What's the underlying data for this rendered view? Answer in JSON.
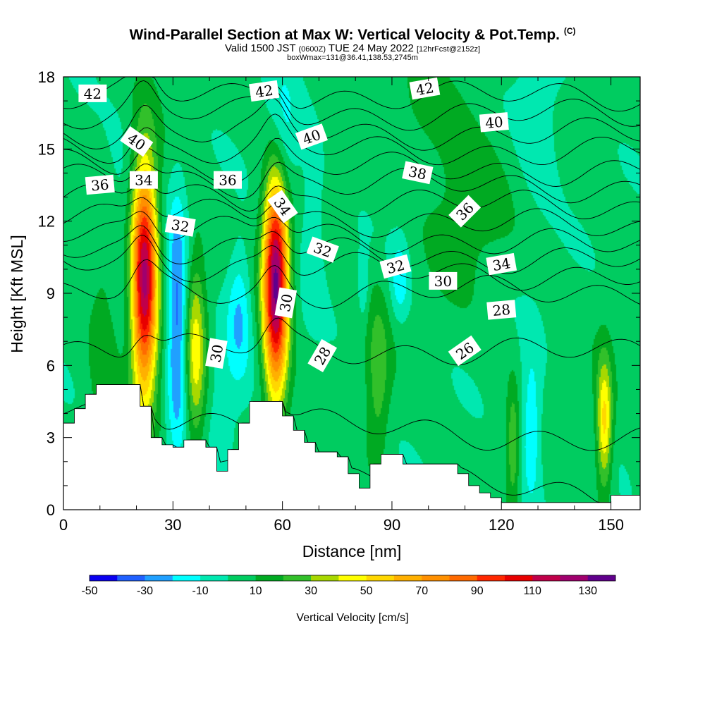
{
  "header": {
    "title": "Wind-Parallel Section at Max W: Vertical Velocity & Pot.Temp.",
    "title_tag": "(C)",
    "subtitle_a": "Valid 1500 JST",
    "subtitle_b": "(0600Z)",
    "subtitle_c": "TUE 24 May 2022",
    "subtitle_d": "[12hrFcst@2152z]",
    "boxline": "boxWmax=131@36.41,138.53,2745m"
  },
  "chart_data": {
    "type": "heatmap",
    "xlabel": "Distance [nm]",
    "ylabel": "Height [Kft MSL]",
    "xlim": [
      0,
      158
    ],
    "ylim": [
      0,
      18
    ],
    "x_ticks": [
      "0",
      "30",
      "60",
      "90",
      "120",
      "150"
    ],
    "y_ticks": [
      "0",
      "3",
      "6",
      "9",
      "12",
      "15",
      "18"
    ],
    "colorbar": {
      "label": "Vertical Velocity [cm/s]",
      "tick_labels": [
        "-50",
        "-30",
        "-10",
        "10",
        "30",
        "50",
        "70",
        "90",
        "110",
        "130"
      ],
      "levels": [
        -50,
        -40,
        -30,
        -20,
        -10,
        0,
        10,
        20,
        30,
        40,
        50,
        60,
        70,
        80,
        90,
        100,
        110,
        120,
        130,
        140
      ],
      "colors": [
        "#0a00f0",
        "#2060ff",
        "#20a0ff",
        "#00ffff",
        "#00e8b0",
        "#00cc60",
        "#00aa22",
        "#32c02a",
        "#a8d800",
        "#ffff00",
        "#ffd700",
        "#ffb000",
        "#ff9000",
        "#ff6a00",
        "#ff2800",
        "#e80000",
        "#c0004a",
        "#a0006e",
        "#60008c"
      ]
    },
    "terrain_top_kft": [
      [
        0,
        3.6
      ],
      [
        3,
        4.2
      ],
      [
        6,
        4.8
      ],
      [
        9,
        5.2
      ],
      [
        21,
        4.3
      ],
      [
        24,
        3
      ],
      [
        27,
        2.7
      ],
      [
        30,
        2.6
      ],
      [
        33,
        2.9
      ],
      [
        39,
        2.6
      ],
      [
        42,
        1.6
      ],
      [
        45,
        2.5
      ],
      [
        48,
        3.6
      ],
      [
        51,
        4.5
      ],
      [
        57,
        4.5
      ],
      [
        60,
        3.9
      ],
      [
        63,
        3.3
      ],
      [
        66,
        2.8
      ],
      [
        69,
        2.4
      ],
      [
        75,
        2.2
      ],
      [
        78,
        1.5
      ],
      [
        81,
        0.9
      ],
      [
        84,
        1.9
      ],
      [
        87,
        2.3
      ],
      [
        90,
        2.3
      ],
      [
        93,
        1.9
      ],
      [
        105,
        1.9
      ],
      [
        108,
        1.5
      ],
      [
        111,
        1
      ],
      [
        114,
        0.7
      ],
      [
        117,
        0.5
      ],
      [
        120,
        0.3
      ],
      [
        147,
        0.3
      ],
      [
        150,
        0.6
      ],
      [
        158,
        0.6
      ]
    ],
    "vertical_velocity_cells": [
      {
        "x": 22,
        "z": 9.6,
        "sx": 2.5,
        "sz": 3.4,
        "w": 120
      },
      {
        "x": 58,
        "z": 9.6,
        "sx": 2.4,
        "sz": 3.4,
        "w": 130
      },
      {
        "x": 36,
        "z": 6.6,
        "sx": 2.0,
        "sz": 2.8,
        "w": 40
      },
      {
        "x": 148,
        "z": 3.6,
        "sx": 1.5,
        "sz": 1.9,
        "w": 50
      },
      {
        "x": 123,
        "z": 2.6,
        "sx": 1.2,
        "sz": 1.8,
        "w": 25
      },
      {
        "x": 31,
        "z": 7.6,
        "sx": 2.0,
        "sz": 3.6,
        "w": -40
      },
      {
        "x": 48,
        "z": 8.2,
        "sx": 2.3,
        "sz": 2.0,
        "w": -25
      },
      {
        "x": 59,
        "z": 15.0,
        "sx": 3.0,
        "sz": 2.3,
        "w": -30
      },
      {
        "x": 43,
        "z": 5.0,
        "sx": 3.0,
        "sz": 2.3,
        "w": -10
      },
      {
        "x": 128,
        "z": 3.4,
        "sx": 2.0,
        "sz": 2.2,
        "w": -25
      },
      {
        "x": 92,
        "z": 9.6,
        "sx": 1.8,
        "sz": 1.2,
        "w": -20
      },
      {
        "x": 82,
        "z": 9.3,
        "sx": 1.0,
        "sz": 1.0,
        "w": -15
      },
      {
        "x": 68,
        "z": 12.0,
        "sx": 2.5,
        "sz": 2.5,
        "w": -12
      },
      {
        "x": 130,
        "z": 16.2,
        "sx": 5.0,
        "sz": 2.5,
        "w": -12
      },
      {
        "x": 15,
        "z": 12.6,
        "sx": 4.0,
        "sz": 3.0,
        "w": -8
      },
      {
        "x": 86,
        "z": 5.5,
        "sx": 2.2,
        "sz": 2.5,
        "w": 22
      },
      {
        "x": 11,
        "z": 7.2,
        "sx": 3.0,
        "sz": 3.5,
        "w": 15
      },
      {
        "x": 110,
        "z": 13.0,
        "sx": 8.0,
        "sz": 2.5,
        "w": 12
      },
      {
        "x": 100,
        "z": 16.5,
        "sx": 8.0,
        "sz": 1.5,
        "w": 8
      }
    ],
    "theta_isentropes_C": [
      {
        "value": 24,
        "h0": 2.2,
        "h1": 0.6
      },
      {
        "value": 26,
        "h0": 4.1,
        "h1": 2.8
      },
      {
        "value": 28,
        "h0": 6.8,
        "h1": 6.5
      },
      {
        "value": 30,
        "h0": 9.0,
        "h1": 9.1
      },
      {
        "value": 32,
        "h0": 10.3,
        "h1": 9.7
      },
      {
        "value": 33,
        "h0": 11.0,
        "h1": 10.3
      },
      {
        "value": 34,
        "h0": 11.8,
        "h1": 10.9
      },
      {
        "value": 35,
        "h0": 12.4,
        "h1": 11.7
      },
      {
        "value": 36,
        "h0": 13.0,
        "h1": 12.6
      },
      {
        "value": 37,
        "h0": 13.7,
        "h1": 13.4
      },
      {
        "value": 38,
        "h0": 14.3,
        "h1": 14.1
      },
      {
        "value": 39,
        "h0": 15.0,
        "h1": 14.9
      },
      {
        "value": 40,
        "h0": 15.7,
        "h1": 15.6
      },
      {
        "value": 41,
        "h0": 16.5,
        "h1": 16.4
      },
      {
        "value": 42,
        "h0": 17.2,
        "h1": 17.2
      }
    ],
    "contour_labels": [
      {
        "text": "42",
        "x": 8,
        "z": 17.3,
        "rot": 0
      },
      {
        "text": "42",
        "x": 55,
        "z": 17.4,
        "rot": -8
      },
      {
        "text": "42",
        "x": 99,
        "z": 17.5,
        "rot": -10
      },
      {
        "text": "40",
        "x": 20,
        "z": 15.3,
        "rot": 35
      },
      {
        "text": "40",
        "x": 68,
        "z": 15.5,
        "rot": -20
      },
      {
        "text": "40",
        "x": 118,
        "z": 16.1,
        "rot": -5
      },
      {
        "text": "38",
        "x": 97,
        "z": 14.0,
        "rot": 12
      },
      {
        "text": "36",
        "x": 10,
        "z": 13.5,
        "rot": -5
      },
      {
        "text": "36",
        "x": 45,
        "z": 13.7,
        "rot": 0
      },
      {
        "text": "36",
        "x": 110,
        "z": 12.4,
        "rot": -45
      },
      {
        "text": "34",
        "x": 22,
        "z": 13.7,
        "rot": 0
      },
      {
        "text": "34",
        "x": 60,
        "z": 12.6,
        "rot": 55
      },
      {
        "text": "34",
        "x": 120,
        "z": 10.2,
        "rot": -10
      },
      {
        "text": "32",
        "x": 32,
        "z": 11.8,
        "rot": 10
      },
      {
        "text": "32",
        "x": 71,
        "z": 10.8,
        "rot": 20
      },
      {
        "text": "32",
        "x": 91,
        "z": 10.1,
        "rot": -15
      },
      {
        "text": "30",
        "x": 104,
        "z": 9.5,
        "rot": 0
      },
      {
        "text": "30",
        "x": 61,
        "z": 8.6,
        "rot": -80
      },
      {
        "text": "30",
        "x": 42,
        "z": 6.5,
        "rot": -80
      },
      {
        "text": "28",
        "x": 120,
        "z": 8.3,
        "rot": -5
      },
      {
        "text": "28",
        "x": 71,
        "z": 6.4,
        "rot": -60
      },
      {
        "text": "26",
        "x": 110,
        "z": 6.6,
        "rot": -35
      }
    ]
  }
}
